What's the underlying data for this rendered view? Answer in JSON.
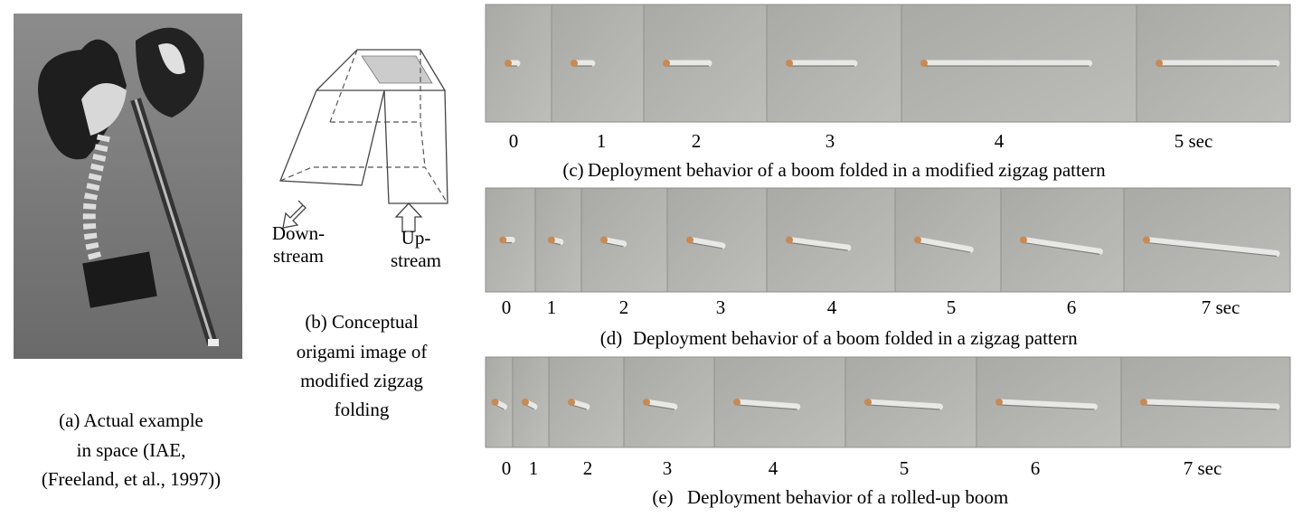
{
  "panel_a": {
    "caption": [
      "(a) Actual example",
      "in space (IAE,",
      "(Freeland, et al., 1997))"
    ]
  },
  "panel_b": {
    "downstream": [
      "Down-",
      "stream"
    ],
    "upstream": [
      "Up-",
      "stream"
    ],
    "caption": [
      "(b) Conceptual",
      "origami image of",
      "modified zigzag",
      "folding"
    ]
  },
  "panels": [
    {
      "label": "(c)",
      "caption": "Deployment behavior of a boom folded in a modified zigzag pattern",
      "frame_times": [
        "0",
        "1",
        "2",
        "3",
        "4",
        "5 sec"
      ]
    },
    {
      "label": "(d)",
      "caption": "Deployment behavior of a boom folded in a zigzag pattern",
      "frame_times": [
        "0",
        "1",
        "2",
        "3",
        "4",
        "5",
        "6",
        "7 sec"
      ]
    },
    {
      "label": "(e)",
      "caption": "Deployment behavior of a rolled-up boom",
      "frame_times": [
        "0",
        "1",
        "2",
        "3",
        "4",
        "5",
        "6",
        "7 sec"
      ]
    }
  ]
}
